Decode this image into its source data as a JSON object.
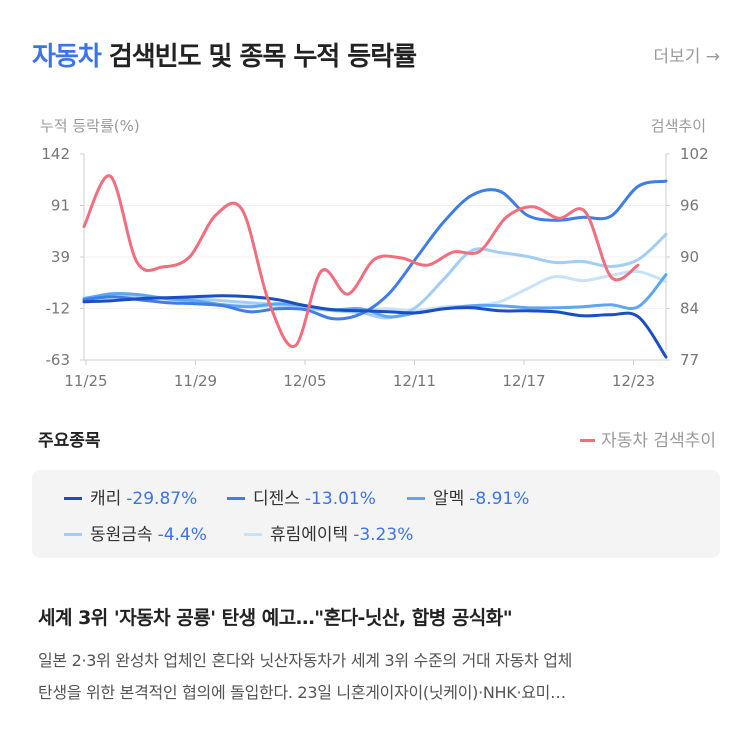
{
  "header": {
    "keyword": "자동차",
    "title_rest": " 검색빈도 및 종목 누적 등락률",
    "more_label": "더보기 →"
  },
  "chart_data": {
    "type": "line",
    "left_axis_title": "누적 등락률(%)",
    "right_axis_title": "검색추이",
    "x_labels": [
      "11/25",
      "11/29",
      "12/05",
      "12/11",
      "12/17",
      "12/23"
    ],
    "left_ticks": [
      "142",
      "91",
      "39",
      "-12",
      "-63"
    ],
    "right_ticks": [
      "102",
      "96",
      "90",
      "84",
      "77"
    ],
    "left_range": [
      -63,
      142
    ],
    "right_range": [
      77,
      102
    ],
    "series": [
      {
        "name": "자동차 검색추이",
        "axis": "right",
        "color": "#f26d7d",
        "values": [
          93.2,
          99.3,
          88.9,
          88.3,
          89.5,
          94.6,
          95.2,
          84.1,
          78.7,
          87.8,
          85.0,
          89.2,
          89.4,
          88.5,
          90.1,
          90.2,
          94.3,
          95.6,
          94.2,
          95.0,
          87.0,
          88.5
        ]
      },
      {
        "name": "캐리",
        "axis": "left",
        "color": "#1a4ec2",
        "values": [
          -5,
          -4,
          -2,
          -1,
          0,
          1,
          0,
          -3,
          -9,
          -13,
          -14,
          -15,
          -16,
          -12,
          -11,
          -14,
          -14,
          -15,
          -19,
          -18,
          -20,
          -60
        ]
      },
      {
        "name": "디젠스",
        "axis": "left",
        "color": "#3f7de8",
        "values": [
          -3,
          0,
          -3,
          -6,
          -7,
          -9,
          -15,
          -12,
          -13,
          -22,
          -17,
          3,
          39,
          75,
          101,
          105,
          81,
          76,
          79,
          80,
          110,
          115
        ]
      },
      {
        "name": "알멕",
        "axis": "left",
        "color": "#5fa6f2",
        "values": [
          -2,
          3,
          2,
          -2,
          -4,
          -8,
          -10,
          -7,
          -9,
          -13,
          -12,
          -20,
          -16,
          -12,
          -9,
          -9,
          -11,
          -11,
          -10,
          -8,
          -10,
          22
        ]
      },
      {
        "name": "동원금속",
        "axis": "left",
        "color": "#a2cdf5",
        "values": [
          -2,
          0,
          0,
          -1,
          -2,
          -4,
          -6,
          -8,
          -11,
          -14,
          -16,
          -21,
          -10,
          18,
          46,
          44,
          40,
          34,
          35,
          30,
          37,
          62
        ]
      },
      {
        "name": "휴림에이텍",
        "axis": "left",
        "color": "#c9e2fb",
        "values": [
          -1,
          -2,
          -3,
          -5,
          -7,
          -8,
          -9,
          -10,
          -12,
          -13,
          -13,
          -12,
          -14,
          -10,
          -9,
          -5,
          8,
          20,
          16,
          21,
          25,
          15
        ]
      }
    ]
  },
  "section": {
    "title": "주요종목",
    "search_legend": "자동차 검색추이"
  },
  "stocks": [
    {
      "name": "캐리",
      "change": "-29.87%"
    },
    {
      "name": "디젠스",
      "change": "-13.01%"
    },
    {
      "name": "알멕",
      "change": "-8.91%"
    },
    {
      "name": "동원금속",
      "change": "-4.4%"
    },
    {
      "name": "휴림에이텍",
      "change": "-3.23%"
    }
  ],
  "news": {
    "title": "세계 3위 '자동차 공룡' 탄생 예고…\"혼다-닛산, 합병 공식화\"",
    "line1": "일본 2·3위 완성차 업체인 혼다와 닛산자동차가 세계 3위 수준의 거대 자동차 업체",
    "line2": "탄생을 위한 본격적인 협의에 돌입한다. 23일 니혼게이자이(닛케이)·NHK·요미…"
  }
}
